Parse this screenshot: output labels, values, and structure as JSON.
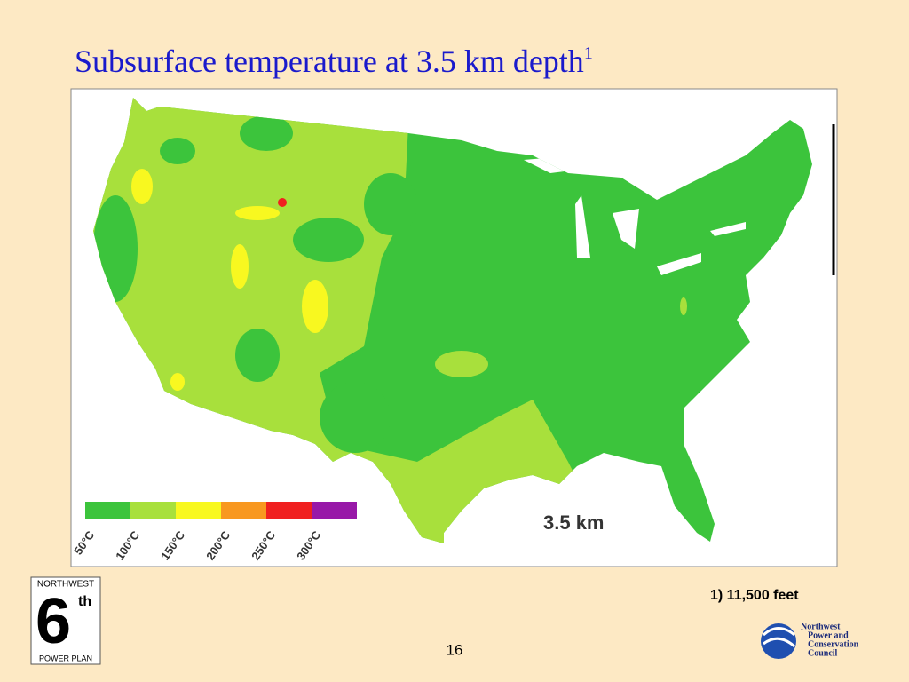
{
  "header": {
    "title": "Subsurface temperature at 3.5 km depth",
    "title_note": "1"
  },
  "map": {
    "depth_label": "3.5 km",
    "legend": [
      {
        "label": "50°C",
        "color": "#3cc43c"
      },
      {
        "label": "100°C",
        "color": "#a8e03c"
      },
      {
        "label": "150°C",
        "color": "#f8f820"
      },
      {
        "label": "200°C",
        "color": "#f89820"
      },
      {
        "label": "250°C",
        "color": "#f02020"
      },
      {
        "label": "300°C",
        "color": "#9818a8"
      }
    ]
  },
  "footnote": "1) 11,500 feet",
  "page_number": "16",
  "left_logo": {
    "top": "NORTHWEST",
    "number": "6",
    "suffix": "th",
    "bottom": "POWER PLAN"
  },
  "right_logo": {
    "lines": [
      "Northwest",
      "Power and",
      "Conservation",
      "Council"
    ]
  }
}
